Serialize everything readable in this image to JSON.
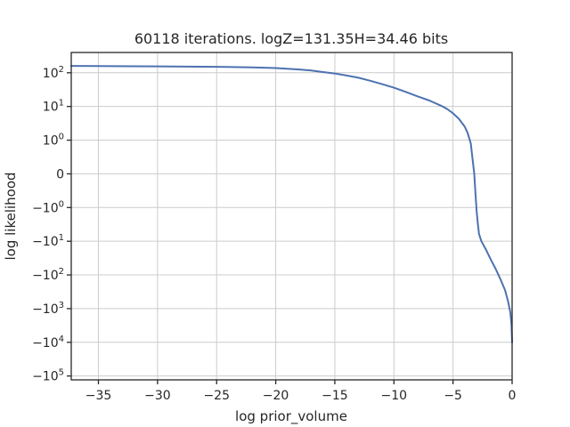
{
  "chart_data": {
    "type": "line",
    "title": "60118 iterations. logZ=131.35H=34.46 bits",
    "xlabel": "log prior_volume",
    "ylabel": "log likelihood",
    "xlim": [
      -37.3,
      0
    ],
    "x_ticks": [
      {
        "value": -35,
        "label": "−35"
      },
      {
        "value": -30,
        "label": "−30"
      },
      {
        "value": -25,
        "label": "−25"
      },
      {
        "value": -20,
        "label": "−20"
      },
      {
        "value": -15,
        "label": "−15"
      },
      {
        "value": -10,
        "label": "−10"
      },
      {
        "value": -5,
        "label": "−5"
      },
      {
        "value": 0,
        "label": "0"
      }
    ],
    "y_scale": "symlog",
    "ylim": [
      -130000,
      400
    ],
    "y_ticks": [
      {
        "value": 100,
        "base": "10",
        "exp": "2"
      },
      {
        "value": 10,
        "base": "10",
        "exp": "1"
      },
      {
        "value": 1,
        "base": "10",
        "exp": "0"
      },
      {
        "value": 0,
        "base": "0",
        "exp": ""
      },
      {
        "value": -1,
        "base": "−10",
        "exp": "0"
      },
      {
        "value": -10,
        "base": "−10",
        "exp": "1"
      },
      {
        "value": -100,
        "base": "−10",
        "exp": "2"
      },
      {
        "value": -1000,
        "base": "−10",
        "exp": "3"
      },
      {
        "value": -10000,
        "base": "−10",
        "exp": "4"
      },
      {
        "value": -100000,
        "base": "−10",
        "exp": "5"
      }
    ],
    "grid": true,
    "series": [
      {
        "color": "#4c72b0",
        "x": [
          -37.3,
          -35,
          -30,
          -25,
          -22,
          -20,
          -18,
          -17,
          -16,
          -15,
          -14,
          -13,
          -12,
          -11,
          -10,
          -9,
          -8,
          -7,
          -6,
          -5.5,
          -5,
          -4.5,
          -4,
          -3.75,
          -3.5,
          -3.4,
          -3.3,
          -3.2,
          -3.1,
          -3.0,
          -2.9,
          -2.8,
          -2.6,
          -2.2,
          -1.8,
          -1.4,
          -1.0,
          -0.6,
          -0.35,
          -0.15,
          -0.05,
          0
        ],
        "y": [
          160,
          158,
          155,
          150,
          145,
          138,
          125,
          117,
          105,
          95,
          83,
          71,
          58,
          46,
          36,
          27,
          20,
          15,
          10.5,
          8.4,
          6.3,
          4.3,
          2.5,
          1.6,
          0.9,
          0.6,
          0.3,
          0,
          -0.6,
          -1.3,
          -3,
          -6,
          -10,
          -18,
          -35,
          -65,
          -130,
          -280,
          -600,
          -1300,
          -3000,
          -10000
        ]
      }
    ]
  }
}
